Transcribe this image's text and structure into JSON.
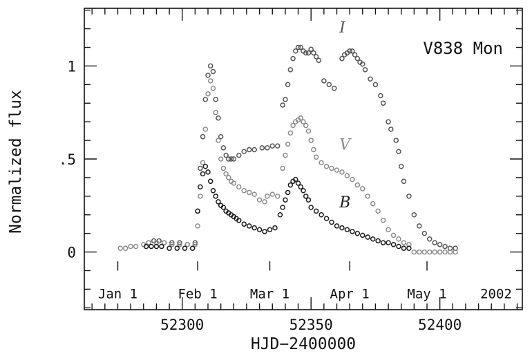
{
  "chart_data": {
    "type": "scatter",
    "title": "V838 Mon",
    "xlabel": "HJD−2400000",
    "ylabel": "Normalized flux",
    "xlim": [
      52262,
      52432
    ],
    "ylim": [
      -0.31,
      1.31
    ],
    "x_ticks": [
      52300,
      52350,
      52400
    ],
    "y_ticks": [
      0,
      0.5,
      1
    ],
    "y_tick_labels": [
      "0",
      ".5",
      "1"
    ],
    "date_ticks": [
      {
        "x": 52275,
        "label": "Jan 1"
      },
      {
        "x": 52306,
        "label": "Feb 1"
      },
      {
        "x": 52334,
        "label": "Mar 1"
      },
      {
        "x": 52365,
        "label": "Apr 1"
      },
      {
        "x": 52395,
        "label": "May 1"
      }
    ],
    "year_label": "2002",
    "grid": false,
    "series": [
      {
        "name": "I",
        "color": "#555555",
        "label_at": [
          52361,
          1.18
        ],
        "points": [
          [
            52287,
            0.05
          ],
          [
            52289,
            0.06
          ],
          [
            52291,
            0.06
          ],
          [
            52293,
            0.05
          ],
          [
            52296,
            0.05
          ],
          [
            52299,
            0.05
          ],
          [
            52302,
            0.04
          ],
          [
            52305,
            0.05
          ],
          [
            52306,
            0.22
          ],
          [
            52307,
            0.45
          ],
          [
            52308,
            0.62
          ],
          [
            52309,
            0.82
          ],
          [
            52310,
            0.95
          ],
          [
            52311,
            1.0
          ],
          [
            52312,
            0.97
          ],
          [
            52313,
            0.82
          ],
          [
            52314,
            0.72
          ],
          [
            52315,
            0.62
          ],
          [
            52316,
            0.56
          ],
          [
            52317,
            0.52
          ],
          [
            52318,
            0.5
          ],
          [
            52319,
            0.5
          ],
          [
            52320,
            0.5
          ],
          [
            52322,
            0.52
          ],
          [
            52324,
            0.54
          ],
          [
            52326,
            0.55
          ],
          [
            52328,
            0.55
          ],
          [
            52331,
            0.56
          ],
          [
            52333,
            0.56
          ],
          [
            52335,
            0.57
          ],
          [
            52337,
            0.57
          ],
          [
            52339,
            0.79
          ],
          [
            52340,
            0.82
          ],
          [
            52341,
            0.9
          ],
          [
            52342,
            0.98
          ],
          [
            52343,
            1.04
          ],
          [
            52344,
            1.08
          ],
          [
            52345,
            1.1
          ],
          [
            52346,
            1.1
          ],
          [
            52347,
            1.08
          ],
          [
            52348,
            1.07
          ],
          [
            52349,
            1.07
          ],
          [
            52350,
            1.09
          ],
          [
            52351,
            1.07
          ],
          [
            52352,
            1.05
          ],
          [
            52353,
            1.03
          ],
          [
            52355,
            0.92
          ],
          [
            52357,
            0.9
          ],
          [
            52359,
            0.88
          ],
          [
            52362,
            1.04
          ],
          [
            52363,
            1.06
          ],
          [
            52364,
            1.07
          ],
          [
            52365,
            1.08
          ],
          [
            52366,
            1.08
          ],
          [
            52367,
            1.06
          ],
          [
            52368,
            1.04
          ],
          [
            52369,
            1.02
          ],
          [
            52370,
            1.01
          ],
          [
            52371,
            0.98
          ],
          [
            52373,
            0.93
          ],
          [
            52375,
            0.9
          ],
          [
            52377,
            0.84
          ],
          [
            52378,
            0.8
          ],
          [
            52380,
            0.7
          ],
          [
            52381,
            0.66
          ],
          [
            52383,
            0.6
          ],
          [
            52384,
            0.54
          ],
          [
            52385,
            0.46
          ],
          [
            52386,
            0.38
          ],
          [
            52388,
            0.3
          ],
          [
            52390,
            0.2
          ],
          [
            52392,
            0.14
          ],
          [
            52394,
            0.1
          ],
          [
            52396,
            0.07
          ],
          [
            52398,
            0.05
          ],
          [
            52400,
            0.04
          ],
          [
            52402,
            0.03
          ],
          [
            52404,
            0.02
          ],
          [
            52406,
            0.02
          ]
        ]
      },
      {
        "name": "V",
        "color": "#8c8c8c",
        "label_at": [
          52361,
          0.55
        ],
        "points": [
          [
            52276,
            0.02
          ],
          [
            52278,
            0.02
          ],
          [
            52280,
            0.03
          ],
          [
            52282,
            0.03
          ],
          [
            52285,
            0.04
          ],
          [
            52287,
            0.05
          ],
          [
            52290,
            0.05
          ],
          [
            52293,
            0.05
          ],
          [
            52296,
            0.04
          ],
          [
            52299,
            0.04
          ],
          [
            52302,
            0.04
          ],
          [
            52305,
            0.04
          ],
          [
            52306,
            0.14
          ],
          [
            52307,
            0.3
          ],
          [
            52308,
            0.48
          ],
          [
            52309,
            0.66
          ],
          [
            52310,
            0.85
          ],
          [
            52311,
            0.92
          ],
          [
            52312,
            0.88
          ],
          [
            52313,
            0.75
          ],
          [
            52314,
            0.6
          ],
          [
            52315,
            0.5
          ],
          [
            52316,
            0.45
          ],
          [
            52317,
            0.42
          ],
          [
            52318,
            0.4
          ],
          [
            52319,
            0.38
          ],
          [
            52320,
            0.37
          ],
          [
            52322,
            0.35
          ],
          [
            52324,
            0.33
          ],
          [
            52326,
            0.32
          ],
          [
            52328,
            0.31
          ],
          [
            52330,
            0.28
          ],
          [
            52332,
            0.27
          ],
          [
            52333,
            0.3
          ],
          [
            52335,
            0.31
          ],
          [
            52337,
            0.3
          ],
          [
            52339,
            0.45
          ],
          [
            52340,
            0.52
          ],
          [
            52341,
            0.58
          ],
          [
            52342,
            0.64
          ],
          [
            52343,
            0.68
          ],
          [
            52344,
            0.7
          ],
          [
            52345,
            0.71
          ],
          [
            52346,
            0.72
          ],
          [
            52347,
            0.7
          ],
          [
            52348,
            0.68
          ],
          [
            52349,
            0.65
          ],
          [
            52350,
            0.6
          ],
          [
            52351,
            0.55
          ],
          [
            52352,
            0.51
          ],
          [
            52354,
            0.48
          ],
          [
            52356,
            0.46
          ],
          [
            52358,
            0.45
          ],
          [
            52360,
            0.44
          ],
          [
            52362,
            0.43
          ],
          [
            52364,
            0.41
          ],
          [
            52366,
            0.39
          ],
          [
            52368,
            0.36
          ],
          [
            52370,
            0.34
          ],
          [
            52372,
            0.3
          ],
          [
            52374,
            0.26
          ],
          [
            52376,
            0.22
          ],
          [
            52378,
            0.17
          ],
          [
            52380,
            0.12
          ],
          [
            52382,
            0.09
          ],
          [
            52384,
            0.07
          ],
          [
            52386,
            0.05
          ],
          [
            52388,
            0.04
          ],
          [
            52390,
            0.0
          ],
          [
            52392,
            0.0
          ],
          [
            52394,
            0.0
          ],
          [
            52396,
            0.0
          ],
          [
            52398,
            0.0
          ],
          [
            52400,
            0.0
          ],
          [
            52402,
            0.0
          ],
          [
            52404,
            0.0
          ],
          [
            52406,
            0.0
          ]
        ]
      },
      {
        "name": "B",
        "color": "#1a1a1a",
        "label_at": [
          52361,
          0.24
        ],
        "points": [
          [
            52286,
            0.03
          ],
          [
            52288,
            0.03
          ],
          [
            52290,
            0.03
          ],
          [
            52292,
            0.03
          ],
          [
            52295,
            0.02
          ],
          [
            52298,
            0.02
          ],
          [
            52301,
            0.02
          ],
          [
            52304,
            0.02
          ],
          [
            52306,
            0.22
          ],
          [
            52307,
            0.35
          ],
          [
            52308,
            0.42
          ],
          [
            52309,
            0.46
          ],
          [
            52310,
            0.43
          ],
          [
            52311,
            0.38
          ],
          [
            52312,
            0.33
          ],
          [
            52313,
            0.3
          ],
          [
            52314,
            0.27
          ],
          [
            52315,
            0.25
          ],
          [
            52316,
            0.24
          ],
          [
            52317,
            0.22
          ],
          [
            52318,
            0.21
          ],
          [
            52319,
            0.2
          ],
          [
            52320,
            0.19
          ],
          [
            52321,
            0.18
          ],
          [
            52322,
            0.17
          ],
          [
            52324,
            0.15
          ],
          [
            52326,
            0.14
          ],
          [
            52328,
            0.13
          ],
          [
            52330,
            0.12
          ],
          [
            52332,
            0.11
          ],
          [
            52334,
            0.12
          ],
          [
            52336,
            0.13
          ],
          [
            52338,
            0.2
          ],
          [
            52339,
            0.24
          ],
          [
            52340,
            0.28
          ],
          [
            52341,
            0.32
          ],
          [
            52342,
            0.36
          ],
          [
            52343,
            0.38
          ],
          [
            52344,
            0.39
          ],
          [
            52345,
            0.37
          ],
          [
            52346,
            0.35
          ],
          [
            52347,
            0.33
          ],
          [
            52348,
            0.3
          ],
          [
            52349,
            0.28
          ],
          [
            52350,
            0.24
          ],
          [
            52352,
            0.22
          ],
          [
            52354,
            0.2
          ],
          [
            52356,
            0.18
          ],
          [
            52358,
            0.16
          ],
          [
            52360,
            0.14
          ],
          [
            52362,
            0.13
          ],
          [
            52364,
            0.12
          ],
          [
            52366,
            0.11
          ],
          [
            52368,
            0.1
          ],
          [
            52370,
            0.09
          ],
          [
            52372,
            0.08
          ],
          [
            52374,
            0.07
          ],
          [
            52376,
            0.06
          ],
          [
            52378,
            0.05
          ],
          [
            52380,
            0.05
          ],
          [
            52382,
            0.04
          ],
          [
            52384,
            0.03
          ],
          [
            52386,
            0.02
          ],
          [
            52388,
            0.02
          ]
        ]
      }
    ]
  }
}
